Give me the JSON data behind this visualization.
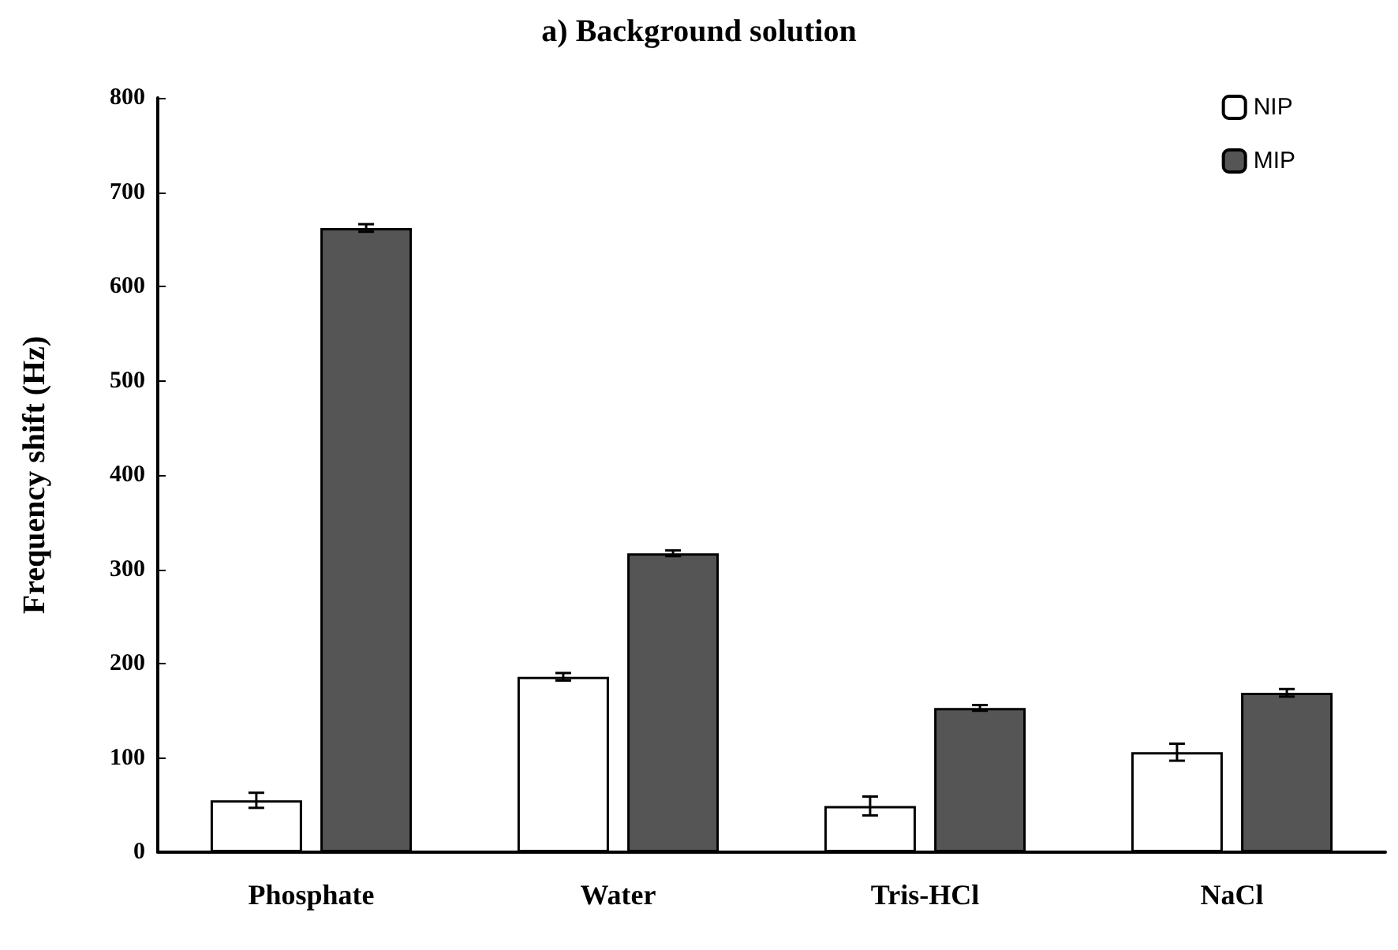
{
  "chart_data": {
    "type": "bar",
    "title": "a) Background solution",
    "ylabel": "Frequency shift (Hz)",
    "categories": [
      "Phosphate",
      "Water",
      "Tris-HCl",
      "NaCl"
    ],
    "series": [
      {
        "name": "NIP",
        "color": "#ffffff",
        "values": [
          55,
          186,
          49,
          106
        ],
        "errors": [
          8,
          4,
          10,
          9
        ]
      },
      {
        "name": "MIP",
        "color": "#555555",
        "values": [
          662,
          317,
          153,
          169
        ],
        "errors": [
          4,
          3,
          3,
          4
        ]
      }
    ],
    "ylim": [
      0,
      800
    ],
    "yticks": [
      0,
      100,
      200,
      300,
      400,
      500,
      600,
      700,
      800
    ],
    "grid": false,
    "legend": "top right"
  }
}
